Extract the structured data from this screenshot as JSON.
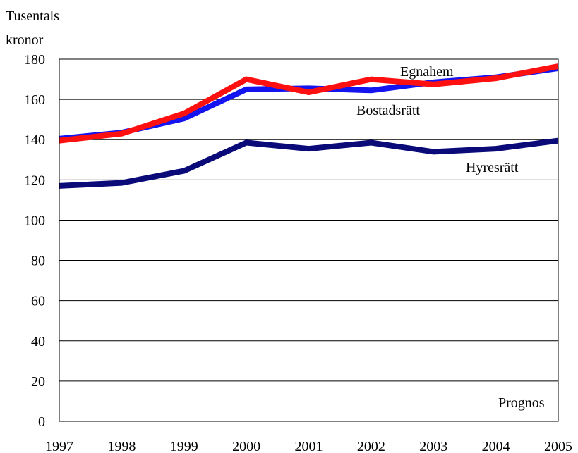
{
  "chart_data": {
    "type": "line",
    "title": "",
    "ylabel_lines": [
      "Tusentals",
      "kronor"
    ],
    "xlabel": "",
    "categories": [
      "1997",
      "1998",
      "1999",
      "2000",
      "2001",
      "2002",
      "2003",
      "2004",
      "2005"
    ],
    "ylim": [
      0,
      180
    ],
    "yticks": [
      0,
      20,
      40,
      60,
      80,
      100,
      120,
      140,
      160,
      180
    ],
    "grid": true,
    "legend": "none",
    "series": [
      {
        "name": "Hyresrätt",
        "color": "#0a0a78",
        "values": [
          117,
          118.5,
          124.5,
          138.5,
          135.5,
          138.5,
          134,
          135.5,
          139.5
        ]
      },
      {
        "name": "Bostadsrätt",
        "color": "#1414f0",
        "values": [
          140.5,
          143.5,
          150.5,
          165,
          165.5,
          164.5,
          168.5,
          171,
          175.5
        ]
      },
      {
        "name": "Egnahem",
        "color": "#ff1010",
        "values": [
          139.5,
          143,
          153,
          170,
          163.5,
          170,
          167.5,
          170.5,
          176.5
        ]
      }
    ],
    "annotations": [
      {
        "text": "Egnahem"
      },
      {
        "text": "Bostadsrätt"
      },
      {
        "text": "Hyresrätt"
      },
      {
        "text": "Prognos"
      }
    ]
  }
}
